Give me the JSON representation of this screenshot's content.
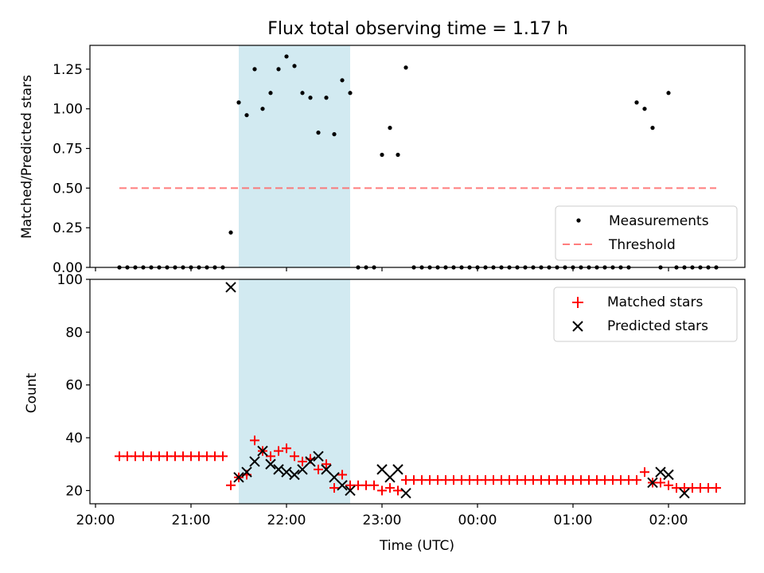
{
  "chart_data": [
    {
      "type": "scatter",
      "title": "Flux total observing time = 1.17 h",
      "xlabel": "",
      "ylabel": "Matched/Predicted stars",
      "x_unit": "time (UTC)",
      "xlim": [
        "20:00",
        "02:48"
      ],
      "ylim": [
        0,
        1.4
      ],
      "yticks": [
        0.0,
        0.25,
        0.5,
        0.75,
        1.0,
        1.25
      ],
      "ytick_labels": [
        "0.00",
        "0.25",
        "0.50",
        "0.75",
        "1.00",
        "1.25"
      ],
      "highlight_span": [
        "21:30",
        "22:40"
      ],
      "highlight_color": "#add8e6",
      "legend_placement": "lower right",
      "legend": [
        "Measurements",
        "Threshold"
      ],
      "threshold": {
        "name": "Threshold",
        "value": 0.5,
        "x_range": [
          "20:15",
          "02:30"
        ],
        "color": "#ff6666",
        "style": "dashed"
      },
      "series": [
        {
          "name": "Measurements",
          "color": "#000000",
          "x": [
            "20:15",
            "20:20",
            "20:25",
            "20:30",
            "20:35",
            "20:40",
            "20:45",
            "20:50",
            "20:55",
            "21:00",
            "21:05",
            "21:10",
            "21:15",
            "21:20",
            "21:25",
            "21:30",
            "21:35",
            "21:40",
            "21:45",
            "21:50",
            "21:55",
            "22:00",
            "22:05",
            "22:10",
            "22:15",
            "22:20",
            "22:25",
            "22:30",
            "22:35",
            "22:40",
            "22:45",
            "22:50",
            "22:55",
            "23:00",
            "23:05",
            "23:10",
            "23:15",
            "23:20",
            "23:25",
            "23:30",
            "23:35",
            "23:40",
            "23:45",
            "23:50",
            "23:55",
            "00:00",
            "00:05",
            "00:10",
            "00:15",
            "00:20",
            "00:25",
            "00:30",
            "00:35",
            "00:40",
            "00:45",
            "00:50",
            "00:55",
            "01:00",
            "01:05",
            "01:10",
            "01:15",
            "01:20",
            "01:25",
            "01:30",
            "01:35",
            "01:40",
            "01:45",
            "01:50",
            "01:55",
            "02:00",
            "02:05",
            "02:10",
            "02:15",
            "02:20",
            "02:25",
            "02:30"
          ],
          "y": [
            0,
            0,
            0,
            0,
            0,
            0,
            0,
            0,
            0,
            0,
            0,
            0,
            0,
            0,
            0.22,
            1.04,
            0.96,
            1.25,
            1.0,
            1.1,
            1.25,
            1.33,
            1.27,
            1.1,
            1.07,
            0.85,
            1.07,
            0.84,
            1.18,
            1.1,
            0,
            0,
            0,
            0.71,
            0.88,
            0.71,
            1.26,
            0,
            0,
            0,
            0,
            0,
            0,
            0,
            0,
            0,
            0,
            0,
            0,
            0,
            0,
            0,
            0,
            0,
            0,
            0,
            0,
            0,
            0,
            0,
            0,
            0,
            0,
            0,
            0,
            1.04,
            1.0,
            0.88,
            0,
            1.1,
            0,
            0,
            0,
            0,
            0,
            0
          ]
        }
      ]
    },
    {
      "type": "scatter",
      "title": "",
      "xlabel": "Time (UTC)",
      "ylabel": "Count",
      "xlim": [
        "20:00",
        "02:48"
      ],
      "ylim": [
        15,
        100
      ],
      "yticks": [
        20,
        40,
        60,
        80,
        100
      ],
      "ytick_labels": [
        "20",
        "40",
        "60",
        "80",
        "100"
      ],
      "xticks": [
        "20:00",
        "21:00",
        "22:00",
        "23:00",
        "00:00",
        "01:00",
        "02:00"
      ],
      "highlight_span": [
        "21:30",
        "22:40"
      ],
      "highlight_color": "#add8e6",
      "legend_placement": "upper right",
      "legend": [
        "Matched stars",
        "Predicted stars"
      ],
      "series": [
        {
          "name": "Matched stars",
          "marker": "plus",
          "color": "#ff0000",
          "x": [
            "20:15",
            "20:20",
            "20:25",
            "20:30",
            "20:35",
            "20:40",
            "20:45",
            "20:50",
            "20:55",
            "21:00",
            "21:05",
            "21:10",
            "21:15",
            "21:20",
            "21:25",
            "21:30",
            "21:35",
            "21:40",
            "21:45",
            "21:50",
            "21:55",
            "22:00",
            "22:05",
            "22:10",
            "22:15",
            "22:20",
            "22:25",
            "22:30",
            "22:35",
            "22:40",
            "22:45",
            "22:50",
            "22:55",
            "23:00",
            "23:05",
            "23:10",
            "23:15",
            "23:20",
            "23:25",
            "23:30",
            "23:35",
            "23:40",
            "23:45",
            "23:50",
            "23:55",
            "00:00",
            "00:05",
            "00:10",
            "00:15",
            "00:20",
            "00:25",
            "00:30",
            "00:35",
            "00:40",
            "00:45",
            "00:50",
            "00:55",
            "01:00",
            "01:05",
            "01:10",
            "01:15",
            "01:20",
            "01:25",
            "01:30",
            "01:35",
            "01:40",
            "01:45",
            "01:50",
            "01:55",
            "02:00",
            "02:05",
            "02:10",
            "02:15",
            "02:20",
            "02:25",
            "02:30"
          ],
          "y": [
            33,
            33,
            33,
            33,
            33,
            33,
            33,
            33,
            33,
            33,
            33,
            33,
            33,
            33,
            22,
            25,
            26,
            39,
            35,
            33,
            35,
            36,
            33,
            31,
            32,
            28,
            30,
            21,
            26,
            22,
            22,
            22,
            22,
            20,
            21,
            20,
            24,
            24,
            24,
            24,
            24,
            24,
            24,
            24,
            24,
            24,
            24,
            24,
            24,
            24,
            24,
            24,
            24,
            24,
            24,
            24,
            24,
            24,
            24,
            24,
            24,
            24,
            24,
            24,
            24,
            24,
            27,
            23,
            23,
            22,
            21,
            21,
            21,
            21,
            21,
            21
          ]
        },
        {
          "name": "Predicted stars",
          "marker": "x",
          "color": "#000000",
          "x": [
            "21:25",
            "21:30",
            "21:35",
            "21:40",
            "21:45",
            "21:50",
            "21:55",
            "22:00",
            "22:05",
            "22:10",
            "22:15",
            "22:20",
            "22:25",
            "22:30",
            "22:35",
            "22:40",
            "23:00",
            "23:05",
            "23:10",
            "23:15",
            "01:50",
            "01:55",
            "02:00",
            "02:10"
          ],
          "y": [
            97,
            25,
            27,
            31,
            35,
            30,
            28,
            27,
            26,
            28,
            31,
            33,
            28,
            25,
            22,
            20,
            28,
            25,
            28,
            19,
            23,
            27,
            26,
            19
          ]
        }
      ]
    }
  ]
}
